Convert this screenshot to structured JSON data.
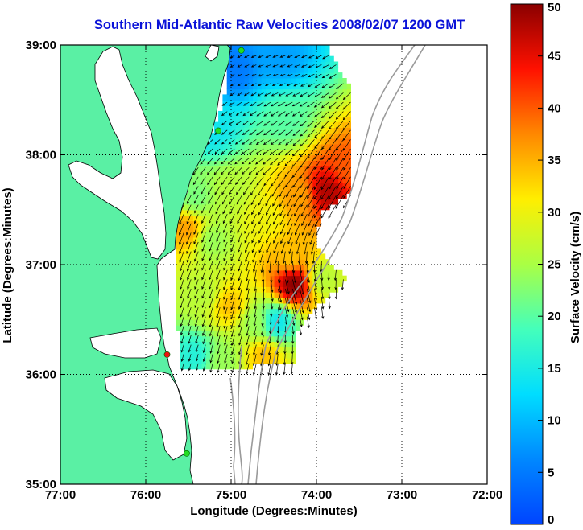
{
  "title": "Southern Mid-Atlantic Raw Velocities 2008/02/07 1200 GMT",
  "xaxis": {
    "label": "Longitude (Degrees:Minutes)",
    "ticks": [
      "77:00",
      "76:00",
      "75:00",
      "74:00",
      "73:00",
      "72:00"
    ],
    "range_deg_west": [
      77,
      72
    ]
  },
  "yaxis": {
    "label": "Latitude (Degrees:Minutes)",
    "ticks": [
      "35:00",
      "36:00",
      "37:00",
      "38:00",
      "39:00"
    ],
    "range_deg_north": [
      35,
      39
    ]
  },
  "colorbar": {
    "label": "Surface Velocity (cm/s)",
    "ticks": [
      "0",
      "5",
      "10",
      "15",
      "20",
      "25",
      "30",
      "35",
      "40",
      "45",
      "50"
    ],
    "range": [
      0,
      50
    ],
    "colormap": "jet"
  },
  "colors": {
    "land": "#5af0a4",
    "title": "#0a12d8",
    "bathymetry": "#9a9a9a",
    "site_marker_active": "#22dd22",
    "site_marker_inactive": "#ee1111"
  },
  "sites": [
    {
      "lon": 74.88,
      "lat": 38.95,
      "status": "active"
    },
    {
      "lon": 75.15,
      "lat": 38.22,
      "status": "active"
    },
    {
      "lon": 75.75,
      "lat": 36.18,
      "status": "inactive"
    },
    {
      "lon": 75.52,
      "lat": 35.28,
      "status": "active"
    }
  ],
  "chart_data": {
    "type": "heatmap",
    "title": "Southern Mid-Atlantic Raw Velocities 2008/02/07 1200 GMT",
    "xlabel": "Longitude (Degrees:Minutes)",
    "ylabel": "Latitude (Degrees:Minutes)",
    "colorbar_label": "Surface Velocity (cm/s)",
    "clim": [
      0,
      50
    ],
    "xlim_deg_west": [
      77,
      72
    ],
    "ylim_deg_north": [
      35,
      39
    ],
    "grid": true,
    "speed_centers": [
      {
        "lon": 74.95,
        "lat": 38.75,
        "speed": 5
      },
      {
        "lon": 74.4,
        "lat": 38.85,
        "speed": 8
      },
      {
        "lon": 74.35,
        "lat": 38.3,
        "speed": 20
      },
      {
        "lon": 75.2,
        "lat": 38.2,
        "speed": 14
      },
      {
        "lon": 73.85,
        "lat": 37.65,
        "speed": 48
      },
      {
        "lon": 73.6,
        "lat": 37.85,
        "speed": 40
      },
      {
        "lon": 74.2,
        "lat": 37.6,
        "speed": 36
      },
      {
        "lon": 74.6,
        "lat": 37.4,
        "speed": 30
      },
      {
        "lon": 75.0,
        "lat": 37.65,
        "speed": 26
      },
      {
        "lon": 75.4,
        "lat": 37.6,
        "speed": 22
      },
      {
        "lon": 75.2,
        "lat": 37.2,
        "speed": 24
      },
      {
        "lon": 75.5,
        "lat": 37.3,
        "speed": 36
      },
      {
        "lon": 74.3,
        "lat": 37.05,
        "speed": 34
      },
      {
        "lon": 74.25,
        "lat": 36.8,
        "speed": 50
      },
      {
        "lon": 73.9,
        "lat": 36.85,
        "speed": 26
      },
      {
        "lon": 75.3,
        "lat": 36.7,
        "speed": 26
      },
      {
        "lon": 75.0,
        "lat": 36.6,
        "speed": 34
      },
      {
        "lon": 74.7,
        "lat": 36.45,
        "speed": 24
      },
      {
        "lon": 74.45,
        "lat": 36.45,
        "speed": 14
      },
      {
        "lon": 74.6,
        "lat": 36.15,
        "speed": 34
      },
      {
        "lon": 75.4,
        "lat": 36.15,
        "speed": 16
      },
      {
        "lon": 75.1,
        "lat": 36.1,
        "speed": 24
      }
    ],
    "flow_direction_deg": [
      {
        "lon": 74.4,
        "lat": 38.8,
        "dir": 250
      },
      {
        "lon": 74.6,
        "lat": 38.2,
        "dir": 235
      },
      {
        "lon": 73.8,
        "lat": 37.7,
        "dir": 210
      },
      {
        "lon": 74.5,
        "lat": 37.4,
        "dir": 205
      },
      {
        "lon": 75.2,
        "lat": 37.0,
        "dir": 200
      },
      {
        "lon": 74.3,
        "lat": 36.8,
        "dir": 165
      },
      {
        "lon": 74.9,
        "lat": 36.4,
        "dir": 195
      }
    ]
  }
}
